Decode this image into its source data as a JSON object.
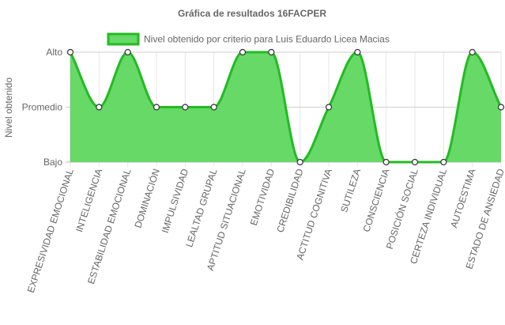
{
  "chart_data": {
    "type": "area",
    "title": "Gráfica de resultados 16FACPER",
    "ylabel": "Nivel obtenido",
    "xlabel": "",
    "y_levels": [
      "Bajo",
      "Promedio",
      "Alto"
    ],
    "ylim": [
      0,
      2
    ],
    "grid": true,
    "legend_position": "top",
    "categories": [
      "EXPRESIVIDAD EMOCIONAL",
      "INTELIGENCIA",
      "ESTABILIDAD EMOCIONAL",
      "DOMINACIÓN",
      "IMPULSIVIDAD",
      "LEALTAD GRUPAL",
      "APTITUD SITUACIONAL",
      "EMOTIVIDAD",
      "CREDIBILIDAD",
      "ACTITUD COGNITIVA",
      "SUTILEZA",
      "CONSCIENCIA",
      "POSICIÓN SOCIAL",
      "CERTEZA INDIVIDUAL",
      "AUTOESTIMA",
      "ESTADO DE ANSIEDAD"
    ],
    "series": [
      {
        "name": "Nivel obtenido por criterio para Luis Eduardo Licea Macias",
        "values": [
          2,
          1,
          2,
          1,
          1,
          1,
          2,
          2,
          0,
          1,
          2,
          0,
          0,
          0,
          2,
          1
        ],
        "fill_color": "#66d966",
        "line_color": "#22bb22"
      }
    ]
  }
}
